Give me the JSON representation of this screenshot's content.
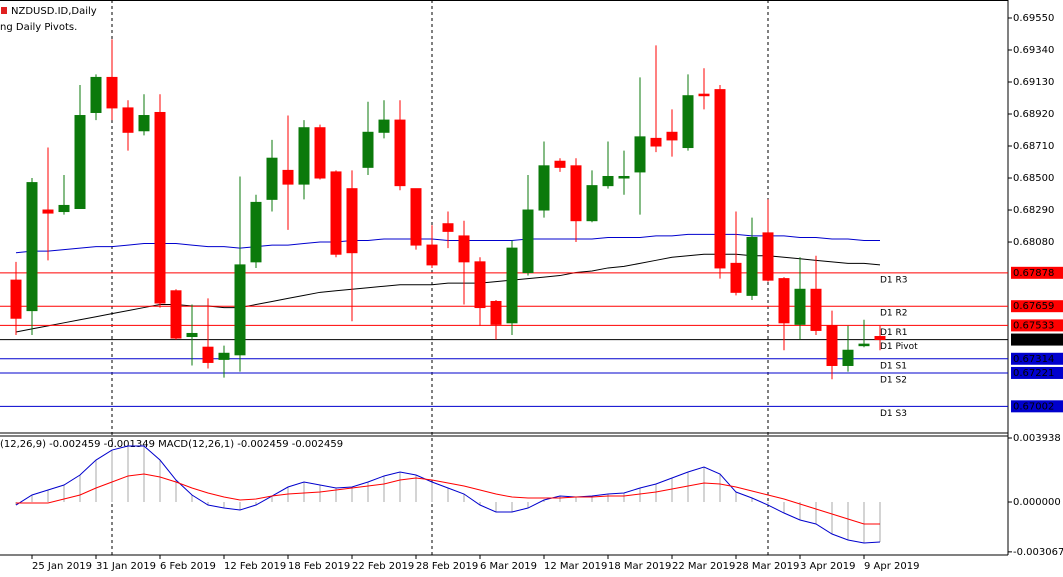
{
  "chart_data": [
    {
      "type": "candlestick",
      "title": "NZDUSD.ID,Daily",
      "subtitle": "ng Daily Pivots.",
      "categories": [
        null,
        "25 Jan 2019",
        null,
        null,
        null,
        "31 Jan 2019",
        null,
        null,
        null,
        "6 Feb 2019",
        null,
        null,
        null,
        "12 Feb 2019",
        null,
        null,
        null,
        "18 Feb 2019",
        null,
        null,
        null,
        "22 Feb 2019",
        null,
        null,
        null,
        "28 Feb 2019",
        null,
        null,
        null,
        "6 Mar 2019",
        null,
        null,
        null,
        "12 Mar 2019",
        null,
        null,
        null,
        "18 Mar 2019",
        null,
        null,
        null,
        "22 Mar 2019",
        null,
        null,
        null,
        "28 Mar 2019",
        null,
        null,
        null,
        "3 Apr 2019",
        null,
        null,
        null,
        "9 Apr 2019",
        null
      ],
      "open": [
        0.6783,
        0.6763,
        0.6829,
        0.6828,
        0.683,
        0.6893,
        0.6916,
        0.6896,
        0.6881,
        0.6893,
        0.6776,
        0.6746,
        0.6739,
        0.6731,
        0.6734,
        0.6795,
        0.6836,
        0.6855,
        0.6846,
        0.6883,
        0.6854,
        0.6843,
        0.6857,
        0.688,
        0.6888,
        0.6843,
        0.6806,
        0.682,
        0.6812,
        0.6795,
        0.6769,
        0.6755,
        0.6788,
        0.6829,
        0.6861,
        0.6858,
        0.6822,
        0.6845,
        0.685,
        0.6854,
        0.6876,
        0.688,
        0.687,
        0.6905,
        0.6908,
        0.6794,
        0.6773,
        0.6814,
        0.6784,
        0.6754,
        0.6777,
        0.6753,
        0.6727,
        0.674,
        0.6746
      ],
      "high": [
        0.6795,
        0.685,
        0.687,
        0.6852,
        0.6911,
        0.6918,
        0.6941,
        0.6901,
        0.6905,
        0.6905,
        0.6777,
        0.6767,
        0.6771,
        0.674,
        0.6851,
        0.6839,
        0.6875,
        0.6891,
        0.6888,
        0.6885,
        0.6855,
        0.6855,
        0.69,
        0.6901,
        0.6901,
        0.6843,
        0.6819,
        0.6828,
        0.6822,
        0.6798,
        0.677,
        0.6809,
        0.6852,
        0.6874,
        0.6863,
        0.6863,
        0.6855,
        0.6874,
        0.6868,
        0.6916,
        0.6937,
        0.6895,
        0.6918,
        0.6922,
        0.6911,
        0.6828,
        0.6824,
        0.6836,
        0.6785,
        0.6798,
        0.6799,
        0.6763,
        0.6753,
        0.6757,
        0.6753
      ],
      "low": [
        0.6747,
        0.6747,
        0.6796,
        0.6826,
        0.683,
        0.6888,
        0.6888,
        0.6868,
        0.6878,
        0.6765,
        0.6744,
        0.6727,
        0.6725,
        0.6719,
        0.6723,
        0.6791,
        0.6828,
        0.6816,
        0.6836,
        0.6849,
        0.6798,
        0.6756,
        0.6852,
        0.6876,
        0.6842,
        0.6803,
        0.6791,
        0.6804,
        0.6767,
        0.6753,
        0.6744,
        0.6747,
        0.6786,
        0.6824,
        0.6854,
        0.6808,
        0.6821,
        0.6843,
        0.6839,
        0.6826,
        0.6867,
        0.6864,
        0.6868,
        0.6895,
        0.6784,
        0.6773,
        0.677,
        0.6782,
        0.6737,
        0.6744,
        0.6747,
        0.6718,
        0.6723,
        0.6739,
        0.6737
      ],
      "close": [
        0.6758,
        0.6847,
        0.6827,
        0.6832,
        0.6891,
        0.6916,
        0.6896,
        0.688,
        0.6891,
        0.6768,
        0.6745,
        0.6748,
        0.6729,
        0.6735,
        0.6793,
        0.6834,
        0.6863,
        0.6846,
        0.6883,
        0.685,
        0.68,
        0.6801,
        0.688,
        0.6888,
        0.6845,
        0.6806,
        0.6793,
        0.6815,
        0.6795,
        0.6765,
        0.6754,
        0.6804,
        0.6829,
        0.6858,
        0.6857,
        0.6822,
        0.6845,
        0.6851,
        0.6851,
        0.6877,
        0.6871,
        0.6875,
        0.6904,
        0.6904,
        0.6791,
        0.6775,
        0.6811,
        0.6783,
        0.6755,
        0.6777,
        0.675,
        0.6727,
        0.6737,
        0.6741,
        0.6744
      ],
      "up_color": "#0b7a0b",
      "down_color": "#ff0000",
      "series": [
        {
          "color": "#0000cd",
          "values": [
            0.6801,
            0.6802,
            0.6802,
            0.6803,
            0.6804,
            0.6805,
            0.6805,
            0.6806,
            0.6807,
            0.6807,
            0.6807,
            0.6806,
            0.6805,
            0.6805,
            0.6804,
            0.6805,
            0.6806,
            0.6806,
            0.6807,
            0.6808,
            0.6808,
            0.6809,
            0.6809,
            0.681,
            0.681,
            0.681,
            0.681,
            0.6809,
            0.6809,
            0.6809,
            0.6809,
            0.6809,
            0.681,
            0.681,
            0.681,
            0.681,
            0.681,
            0.6811,
            0.6811,
            0.6811,
            0.6812,
            0.6812,
            0.6813,
            0.6813,
            0.6813,
            0.6813,
            0.6812,
            0.6812,
            0.6812,
            0.6811,
            0.6811,
            0.681,
            0.681,
            0.6809,
            0.6809
          ]
        },
        {
          "color": "#000000",
          "values": [
            0.6749,
            0.6751,
            0.6753,
            0.6755,
            0.6757,
            0.6759,
            0.6761,
            0.6763,
            0.6765,
            0.6767,
            0.6767,
            0.6766,
            0.6766,
            0.6765,
            0.6765,
            0.6767,
            0.6769,
            0.6771,
            0.6773,
            0.6775,
            0.6776,
            0.6777,
            0.6778,
            0.6779,
            0.678,
            0.678,
            0.678,
            0.6781,
            0.6781,
            0.6781,
            0.6782,
            0.6783,
            0.6784,
            0.6785,
            0.6786,
            0.6788,
            0.6789,
            0.6791,
            0.6792,
            0.6794,
            0.6796,
            0.6798,
            0.6799,
            0.68,
            0.68,
            0.68,
            0.6799,
            0.6799,
            0.6798,
            0.6797,
            0.6796,
            0.6795,
            0.6794,
            0.6794,
            0.6793
          ]
        }
      ],
      "levels": [
        {
          "name": "D1 R3",
          "value": 0.67878,
          "value_label": "0.67878",
          "color": "#ff0000"
        },
        {
          "name": "D1 R2",
          "value": 0.67659,
          "value_label": "0.67659",
          "color": "#ff0000"
        },
        {
          "name": "D1 R1",
          "value": 0.67533,
          "value_label": "0.67533",
          "color": "#ff0000"
        },
        {
          "name": "D1 Pivot",
          "value": 0.6744,
          "value_label": "0.67440",
          "color": "#000000"
        },
        {
          "name": "D1 S1",
          "value": 0.67314,
          "value_label": "0.67314",
          "color": "#0000cd"
        },
        {
          "name": "D1 S2",
          "value": 0.67221,
          "value_label": "0.67221",
          "color": "#0000cd"
        },
        {
          "name": "D1 S3",
          "value": 0.67002,
          "value_label": "0.67002",
          "color": "#0000cd"
        }
      ],
      "ylim": [
        0.66827,
        0.69668
      ],
      "yticks": [
        {
          "value": 0.6955,
          "label": "0.69550"
        },
        {
          "value": 0.6934,
          "label": "0.69340"
        },
        {
          "value": 0.6913,
          "label": "0.69130"
        },
        {
          "value": 0.6892,
          "label": "0.68920"
        },
        {
          "value": 0.6871,
          "label": "0.68710"
        },
        {
          "value": 0.685,
          "label": "0.68500"
        },
        {
          "value": 0.6829,
          "label": "0.68290"
        },
        {
          "value": 0.6808,
          "label": "0.68080"
        }
      ]
    },
    {
      "type": "macd",
      "title": "(12,26,9) -0.002459 -0.001349 MACD(12,26,1) -0.002459 -0.002459",
      "histogram": true,
      "histogram_color": "#a8a8a8",
      "series": [
        {
          "color": "#0000cd",
          "values": [
            -0.000185,
            0.000431,
            0.000738,
            0.001046,
            0.001661,
            0.002583,
            0.003198,
            0.003444,
            0.003444,
            0.002583,
            0.001353,
            0.000431,
            -0.000185,
            -0.000369,
            -0.000492,
            -0.000185,
            0.000369,
            0.000923,
            0.00123,
            0.001046,
            0.000861,
            0.000923,
            0.00123,
            0.001599,
            0.001845,
            0.001661,
            0.00123,
            0.000861,
            0.000492,
            -0.000185,
            -0.000615,
            -0.000615,
            -0.000369,
            0.000123,
            0.000369,
            0.000308,
            0.000369,
            0.000492,
            0.000554,
            0.000861,
            0.001107,
            0.001476,
            0.001845,
            0.002153,
            0.001722,
            0.000615,
            0.000246,
            -0.000185,
            -0.000677,
            -0.001107,
            -0.001353,
            -0.001968,
            -0.002337,
            -0.002522,
            -0.002459
          ]
        },
        {
          "color": "#ff0000",
          "values": [
            -6.2e-05,
            -6.2e-05,
            -6.2e-05,
            0.000185,
            0.000431,
            0.000861,
            0.00123,
            0.001599,
            0.001722,
            0.001538,
            0.00123,
            0.000861,
            0.000554,
            0.000308,
            0.000123,
            0.000185,
            0.000369,
            0.000492,
            0.000554,
            0.000615,
            0.000738,
            0.000861,
            0.000984,
            0.001107,
            0.001353,
            0.001476,
            0.001353,
            0.001169,
            0.000984,
            0.000738,
            0.000492,
            0.000308,
            0.000246,
            0.000246,
            0.000246,
            0.000308,
            0.000308,
            0.000369,
            0.000369,
            0.000492,
            0.000615,
            0.0008,
            0.000984,
            0.001169,
            0.001107,
            0.000923,
            0.000677,
            0.000431,
            0.000185,
            -0.000123,
            -0.000431,
            -0.000738,
            -0.001046,
            -0.001353,
            -0.001349
          ]
        }
      ],
      "ylim": [
        -0.00326,
        0.004
      ],
      "yticks": [
        0.003938,
        {
          "value": 0,
          "label": "0.000000"
        },
        -0.003067
      ]
    }
  ]
}
